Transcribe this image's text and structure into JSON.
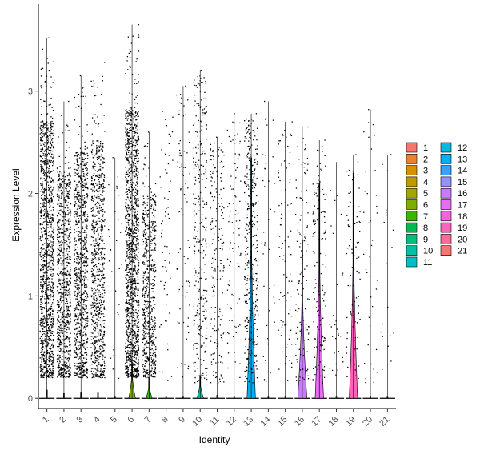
{
  "chart_data": {
    "type": "violin",
    "xlabel": "Identity",
    "ylabel": "Expression Level",
    "categories": [
      "1",
      "2",
      "3",
      "4",
      "5",
      "6",
      "7",
      "8",
      "9",
      "10",
      "11",
      "12",
      "13",
      "14",
      "15",
      "16",
      "17",
      "18",
      "19",
      "20",
      "21"
    ],
    "ylim": [
      -0.1,
      3.85
    ],
    "yticks": [
      0,
      1,
      2,
      3
    ],
    "colors": [
      "#F8766D",
      "#EA8331",
      "#D89000",
      "#C09B00",
      "#A3A500",
      "#7CAE00",
      "#39B600",
      "#00BB4E",
      "#00BF7D",
      "#00C1A3",
      "#00BFC4",
      "#00BAE0",
      "#00B0F6",
      "#35A2FF",
      "#9590FF",
      "#C77CFF",
      "#E76BF3",
      "#FA62DB",
      "#FF62BC",
      "#FF6A98",
      "#F8766D"
    ],
    "series": [
      {
        "name": "1",
        "max": 3.52,
        "dots": 1250,
        "violin_max": 0.08,
        "violin_width": 0.0
      },
      {
        "name": "2",
        "max": 2.9,
        "dots": 850,
        "violin_max": 0.05,
        "violin_width": 0.0
      },
      {
        "name": "3",
        "max": 3.15,
        "dots": 900,
        "violin_max": 0.06,
        "violin_width": 0.0
      },
      {
        "name": "4",
        "max": 3.28,
        "dots": 850,
        "violin_max": 0.06,
        "violin_width": 0.0
      },
      {
        "name": "5",
        "max": 2.35,
        "dots": 30,
        "violin_max": 0.02,
        "violin_width": 0.0
      },
      {
        "name": "6",
        "max": 3.65,
        "dots": 1400,
        "violin_max": 0.35,
        "violin_width": 0.45
      },
      {
        "name": "7",
        "max": 2.6,
        "dots": 650,
        "violin_max": 0.2,
        "violin_width": 0.4
      },
      {
        "name": "8",
        "max": 2.8,
        "dots": 60,
        "violin_max": 0.02,
        "violin_width": 0.0
      },
      {
        "name": "9",
        "max": 3.05,
        "dots": 80,
        "violin_max": 0.02,
        "violin_width": 0.0
      },
      {
        "name": "10",
        "max": 3.2,
        "dots": 300,
        "violin_max": 0.22,
        "violin_width": 0.45
      },
      {
        "name": "11",
        "max": 2.55,
        "dots": 200,
        "violin_max": 0.03,
        "violin_width": 0.0
      },
      {
        "name": "12",
        "max": 2.78,
        "dots": 90,
        "violin_max": 0.02,
        "violin_width": 0.0
      },
      {
        "name": "13",
        "max": 2.78,
        "dots": 380,
        "violin_max": 2.35,
        "violin_width": 0.55
      },
      {
        "name": "14",
        "max": 2.9,
        "dots": 40,
        "violin_max": 0.02,
        "violin_width": 0.0
      },
      {
        "name": "15",
        "max": 2.7,
        "dots": 90,
        "violin_max": 0.02,
        "violin_width": 0.0
      },
      {
        "name": "16",
        "max": 2.65,
        "dots": 120,
        "violin_max": 1.55,
        "violin_width": 0.6
      },
      {
        "name": "17",
        "max": 2.52,
        "dots": 140,
        "violin_max": 2.1,
        "violin_width": 0.55
      },
      {
        "name": "18",
        "max": 2.3,
        "dots": 30,
        "violin_max": 0.02,
        "violin_width": 0.0
      },
      {
        "name": "19",
        "max": 2.38,
        "dots": 90,
        "violin_max": 2.2,
        "violin_width": 0.55
      },
      {
        "name": "20",
        "max": 2.82,
        "dots": 40,
        "violin_max": 0.02,
        "violin_width": 0.0
      },
      {
        "name": "21",
        "max": 2.38,
        "dots": 20,
        "violin_max": 0.02,
        "violin_width": 0.0
      }
    ],
    "legend": {
      "position": "right",
      "columns": 2
    }
  }
}
